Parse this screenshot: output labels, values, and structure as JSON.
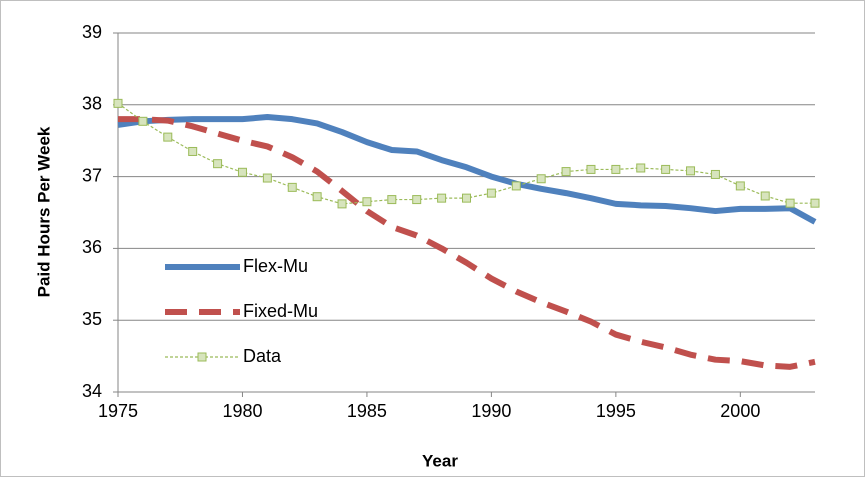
{
  "chart_data": {
    "type": "line",
    "xlabel": "Year",
    "ylabel": "Paid Hours Per Week",
    "x": [
      1975,
      1976,
      1977,
      1978,
      1979,
      1980,
      1981,
      1982,
      1983,
      1984,
      1985,
      1986,
      1987,
      1988,
      1989,
      1990,
      1991,
      1992,
      1993,
      1994,
      1995,
      1996,
      1997,
      1998,
      1999,
      2000,
      2001,
      2002,
      2003
    ],
    "series": [
      {
        "name": "Flex-Mu",
        "color": "#4f81bd",
        "dash": "solid",
        "values": [
          37.72,
          37.77,
          37.79,
          37.8,
          37.8,
          37.8,
          37.83,
          37.8,
          37.74,
          37.62,
          37.48,
          37.37,
          37.35,
          37.23,
          37.13,
          37.0,
          36.9,
          36.83,
          36.77,
          36.7,
          36.62,
          36.6,
          36.59,
          36.56,
          36.52,
          36.55,
          36.55,
          36.56,
          36.37
        ]
      },
      {
        "name": "Fixed-Mu",
        "color": "#c0504d",
        "dash": "dashed",
        "values": [
          37.8,
          37.8,
          37.78,
          37.7,
          37.6,
          37.5,
          37.42,
          37.27,
          37.07,
          36.8,
          36.52,
          36.3,
          36.18,
          36.0,
          35.8,
          35.58,
          35.4,
          35.25,
          35.12,
          34.98,
          34.8,
          34.7,
          34.62,
          34.52,
          34.45,
          34.43,
          34.37,
          34.35,
          34.42
        ]
      },
      {
        "name": "Data",
        "color": "#9bbb59",
        "dash": "dotted",
        "marker": "square",
        "values": [
          38.02,
          37.77,
          37.55,
          37.35,
          37.18,
          37.06,
          36.98,
          36.85,
          36.72,
          36.62,
          36.65,
          36.68,
          36.68,
          36.7,
          36.7,
          36.77,
          36.87,
          36.97,
          37.07,
          37.1,
          37.1,
          37.12,
          37.1,
          37.08,
          37.03,
          36.87,
          36.73,
          36.63,
          36.63
        ]
      }
    ],
    "xlim": [
      1975,
      2003
    ],
    "xticks": [
      1975,
      1980,
      1985,
      1990,
      1995,
      2000
    ],
    "ylim": [
      34,
      39
    ],
    "yticks": [
      34,
      35,
      36,
      37,
      38,
      39
    ],
    "grid": true,
    "legend": "left"
  }
}
